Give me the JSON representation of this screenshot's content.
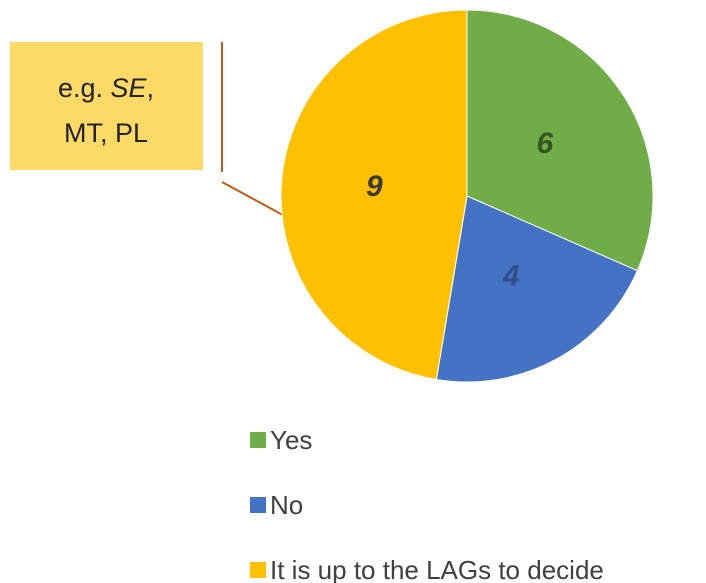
{
  "chart_data": {
    "type": "pie",
    "categories": [
      "Yes",
      "No",
      "It is up to the LAGs to decide"
    ],
    "values": [
      6,
      4,
      9
    ],
    "colors": [
      "#70ad47",
      "#4472c4",
      "#ffc000"
    ],
    "label_colors": [
      "#375623",
      "#2f4f86",
      "#3a3a3a"
    ],
    "annotation": {
      "line1": [
        "e.g. ",
        "SE",
        ","
      ],
      "line2": "MT, PL"
    },
    "legend": "bottom"
  }
}
